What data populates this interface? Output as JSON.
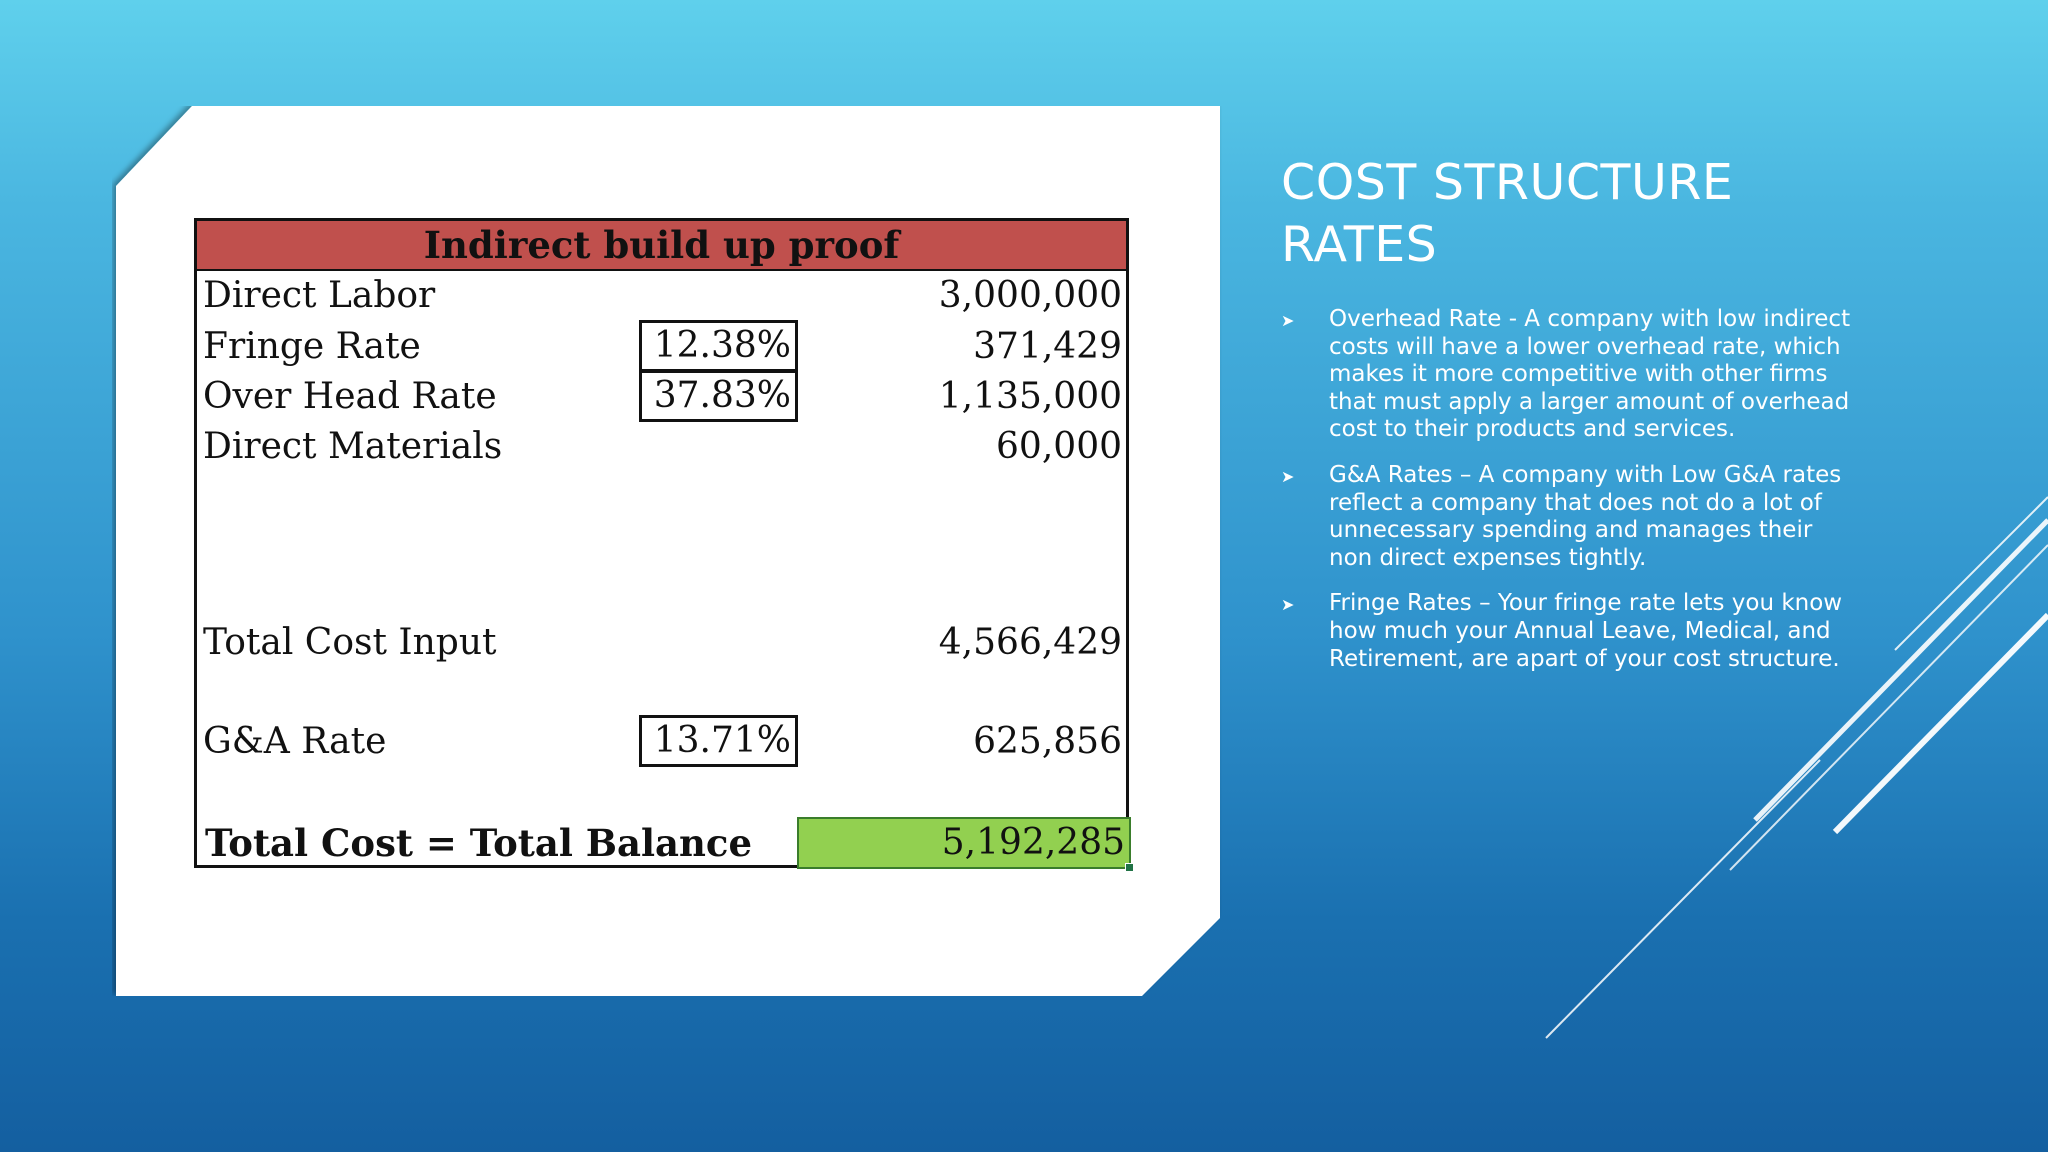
{
  "slide": {
    "title": "COST STRUCTURE RATES",
    "bullets": [
      {
        "icon": "arrowhead-bullet-icon",
        "text": "Overhead Rate - A company with low indirect costs will have a lower overhead rate, which makes it more competitive with other firms that must apply a larger amount of overhead cost to their products and services."
      },
      {
        "icon": "arrowhead-bullet-icon",
        "text": "G&A Rates – A company with Low  G&A rates reflect a company that does not do a lot of unnecessary spending and manages their non direct expenses tightly."
      },
      {
        "icon": "arrowhead-bullet-icon",
        "text": "Fringe Rates – Your fringe rate lets you know how much your Annual Leave, Medical, and Retirement, are apart of your cost structure."
      }
    ]
  },
  "table": {
    "header": "Indirect build up proof",
    "rows": [
      {
        "label": "Direct Labor",
        "rate": "",
        "value": "3,000,000"
      },
      {
        "label": "Fringe Rate",
        "rate": "12.38%",
        "value": "371,429"
      },
      {
        "label": "Over Head Rate",
        "rate": "37.83%",
        "value": "1,135,000"
      },
      {
        "label": "Direct Materials",
        "rate": "",
        "value": "60,000"
      },
      {
        "label": "Total Cost Input",
        "rate": "",
        "value": "4,566,429"
      },
      {
        "label": "G&A Rate",
        "rate": "13.71%",
        "value": "625,856"
      }
    ],
    "total": {
      "label": "Total Cost = Total Balance",
      "value": "5,192,285"
    }
  },
  "colors": {
    "header_fill": "#c0504d",
    "total_fill": "#92d050",
    "background_top": "#5fd0ec",
    "background_bottom": "#145fa0",
    "text": "#ffffff"
  }
}
